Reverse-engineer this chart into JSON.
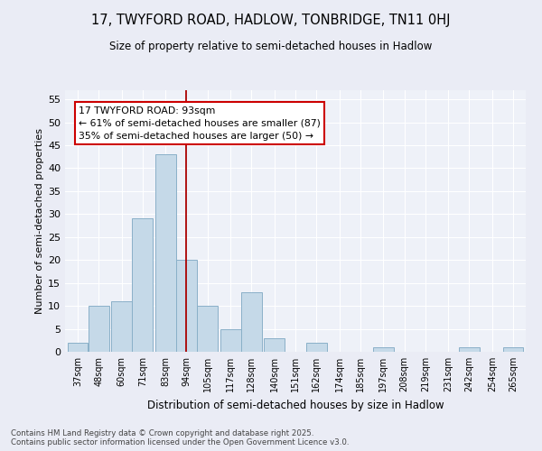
{
  "title": "17, TWYFORD ROAD, HADLOW, TONBRIDGE, TN11 0HJ",
  "subtitle": "Size of property relative to semi-detached houses in Hadlow",
  "xlabel": "Distribution of semi-detached houses by size in Hadlow",
  "ylabel": "Number of semi-detached properties",
  "bins": [
    37,
    48,
    60,
    71,
    83,
    94,
    105,
    117,
    128,
    140,
    151,
    162,
    174,
    185,
    197,
    208,
    219,
    231,
    242,
    254,
    265
  ],
  "counts": [
    2,
    10,
    11,
    29,
    43,
    20,
    10,
    5,
    13,
    3,
    0,
    2,
    0,
    0,
    1,
    0,
    0,
    0,
    1,
    0,
    1
  ],
  "bar_color": "#c5d9e8",
  "bar_edge_color": "#8ab0c8",
  "ref_line_x": 94,
  "ref_line_color": "#aa0000",
  "annotation_text": "17 TWYFORD ROAD: 93sqm\n← 61% of semi-detached houses are smaller (87)\n35% of semi-detached houses are larger (50) →",
  "annotation_box_color": "#ffffff",
  "annotation_box_edge": "#cc0000",
  "ylim": [
    0,
    57
  ],
  "yticks": [
    0,
    5,
    10,
    15,
    20,
    25,
    30,
    35,
    40,
    45,
    50,
    55
  ],
  "tick_labels": [
    "37sqm",
    "48sqm",
    "60sqm",
    "71sqm",
    "83sqm",
    "94sqm",
    "105sqm",
    "117sqm",
    "128sqm",
    "140sqm",
    "151sqm",
    "162sqm",
    "174sqm",
    "185sqm",
    "197sqm",
    "208sqm",
    "219sqm",
    "231sqm",
    "242sqm",
    "254sqm",
    "265sqm"
  ],
  "footer": "Contains HM Land Registry data © Crown copyright and database right 2025.\nContains public sector information licensed under the Open Government Licence v3.0.",
  "bg_color": "#eaecf5",
  "plot_bg_color": "#eef1f8"
}
